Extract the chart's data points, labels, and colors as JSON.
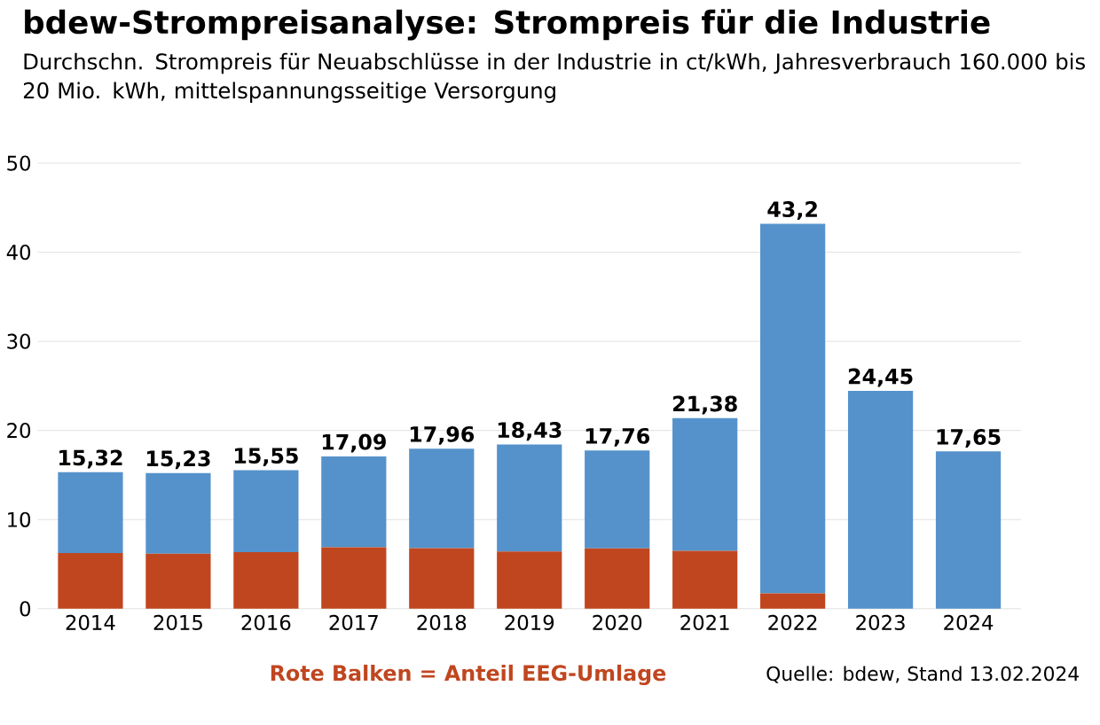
{
  "chart_data": {
    "type": "bar",
    "stacked": true,
    "title": "bdew-Strompreisanalyse: Strompreis für die Industrie",
    "subtitle": "Durchschn. Strompreis für Neuabschlüsse in der Industrie in ct/kWh, Jahresverbrauch 160.000 bis 20 Mio. kWh, mittelspannungsseitige Versorgung",
    "categories": [
      "2014",
      "2015",
      "2016",
      "2017",
      "2018",
      "2019",
      "2020",
      "2021",
      "2022",
      "2023",
      "2024"
    ],
    "series": [
      {
        "name": "Rote Balken = Anteil EEG-Umlage",
        "color": "#c0461f",
        "values": [
          6.24,
          6.17,
          6.35,
          6.88,
          6.79,
          6.41,
          6.76,
          6.5,
          1.72,
          0,
          0
        ]
      },
      {
        "color": "#5592cb",
        "values": [
          9.08,
          9.06,
          9.2,
          10.21,
          11.17,
          12.02,
          11.0,
          14.88,
          41.48,
          24.45,
          17.65
        ]
      }
    ],
    "totals": [
      "15,32",
      "15,23",
      "15,55",
      "17,09",
      "17,96",
      "18,43",
      "17,76",
      "21,38",
      "43,2",
      "24,45",
      "17,65"
    ],
    "ylim": [
      0,
      50
    ],
    "yticks": [
      0,
      10,
      20,
      30,
      40,
      50
    ],
    "grid": "y",
    "annotations": [
      "Quelle: bdew, Stand 13.02.2024"
    ]
  }
}
